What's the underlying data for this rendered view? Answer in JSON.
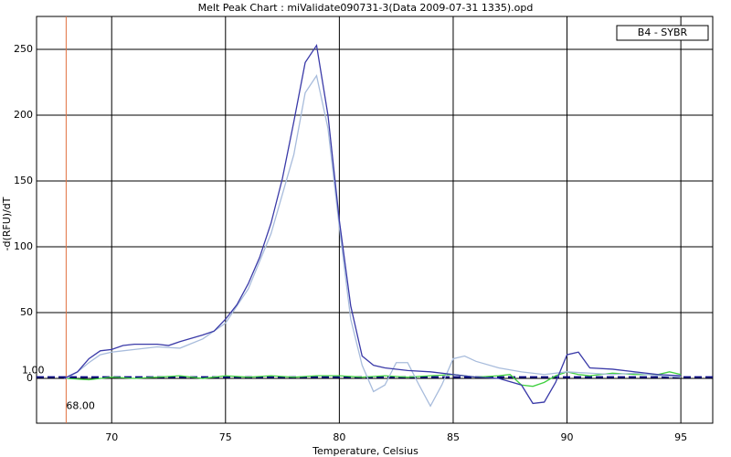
{
  "chart_data": {
    "type": "line",
    "title": "Melt Peak Chart : miValidate090731-3(Data 2009-07-31 1335).opd",
    "x_label": "Temperature, Celsius",
    "y_label": "-d(RFU)/dT",
    "xlim": [
      66.7,
      96.4
    ],
    "ylim": [
      -34,
      275
    ],
    "xticks": [
      70,
      75,
      80,
      85,
      90,
      95
    ],
    "yticks": [
      0,
      50,
      100,
      150,
      200,
      250
    ],
    "grid": true,
    "legend": "upper right",
    "threshold": {
      "value": 1,
      "label": "1.00",
      "color": "#000080"
    },
    "cursor": {
      "value": 68,
      "label": "68.00",
      "color": "#e07040"
    },
    "series": [
      {
        "name": "B4 - SYBR",
        "color": "#3a3aa8",
        "x": [
          67.9,
          68.5,
          69,
          69.5,
          70,
          70.5,
          71,
          72,
          72.5,
          73,
          74,
          74.5,
          75,
          75.5,
          76,
          76.5,
          77,
          77.5,
          78,
          78.5,
          79,
          79.5,
          80,
          80.5,
          81,
          81.5,
          82,
          83,
          84,
          85,
          86,
          87,
          88,
          88.5,
          89,
          89.5,
          90,
          90.5,
          91,
          92,
          93,
          94,
          95
        ],
        "values": [
          0,
          5,
          15,
          21,
          22,
          25,
          26,
          26,
          25,
          28,
          33,
          36,
          45,
          56,
          72,
          92,
          118,
          152,
          195,
          240,
          253,
          200,
          120,
          55,
          17,
          10,
          8,
          6,
          5,
          3,
          1,
          0,
          -5,
          -19,
          -18,
          -3,
          18,
          20,
          8,
          7,
          5,
          3,
          2
        ]
      },
      {
        "color": "#a8bcdc",
        "x": [
          68,
          68.5,
          69,
          69.5,
          70,
          71,
          72,
          73,
          74,
          75,
          76,
          77,
          78,
          78.5,
          79,
          79.5,
          80,
          80.5,
          81,
          81.5,
          82,
          82.5,
          83,
          83.5,
          84,
          84.5,
          85,
          85.5,
          86,
          87,
          88,
          89,
          90,
          91,
          92,
          93,
          94,
          95
        ],
        "values": [
          0,
          5,
          12,
          18,
          20,
          22,
          24,
          23,
          30,
          42,
          68,
          110,
          170,
          217,
          230,
          190,
          115,
          45,
          10,
          -10,
          -5,
          12,
          12,
          -5,
          -21,
          -5,
          15,
          17,
          13,
          8,
          5,
          3,
          5,
          4,
          3,
          4,
          2,
          1
        ]
      },
      {
        "color": "#40d040",
        "x": [
          68,
          69,
          70,
          71,
          72,
          73,
          74,
          75,
          76,
          77,
          78,
          79,
          80,
          81,
          82,
          83,
          84,
          85,
          86,
          87,
          87.5,
          88,
          88.5,
          89,
          89.5,
          90,
          90.5,
          91,
          92,
          93,
          94,
          94.5,
          95
        ],
        "values": [
          0,
          -1,
          1,
          0,
          1,
          2,
          0,
          2,
          1,
          2,
          1,
          2,
          2,
          1,
          2,
          1,
          2,
          3,
          1,
          2,
          3,
          -5,
          -6,
          -3,
          2,
          5,
          3,
          2,
          4,
          3,
          3,
          5,
          3
        ]
      }
    ]
  }
}
